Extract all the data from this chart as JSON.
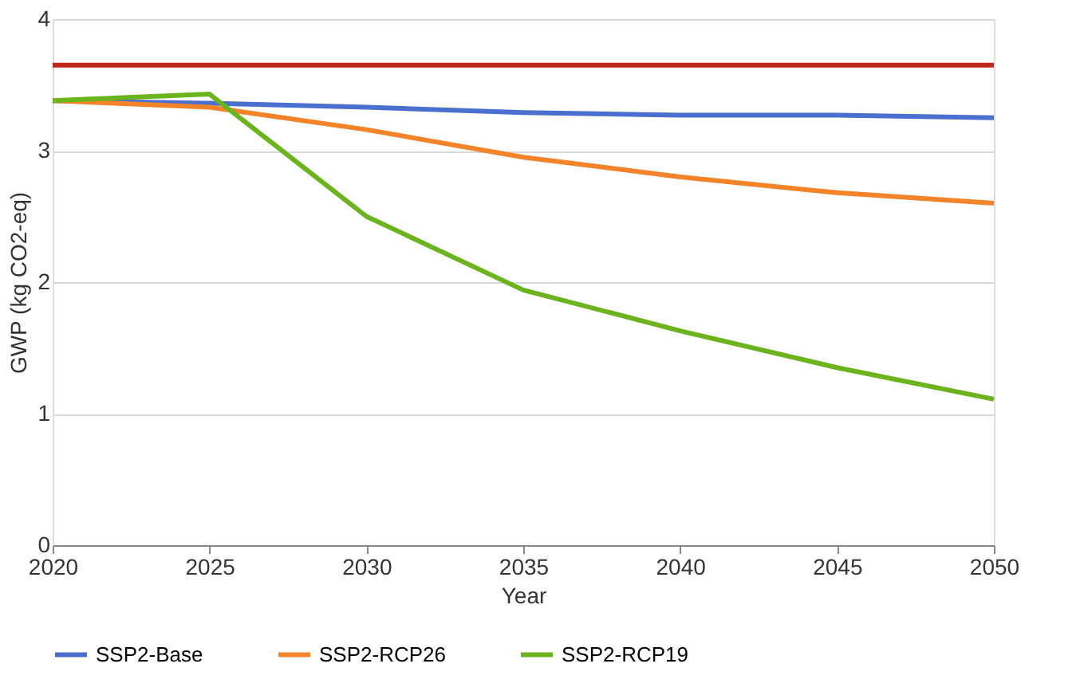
{
  "chart_data": {
    "type": "line",
    "xlabel": "Year",
    "ylabel": "GWP (kg CO2-eq)",
    "x": [
      2020,
      2025,
      2030,
      2035,
      2040,
      2045,
      2050
    ],
    "series": [
      {
        "color": "#c0281c",
        "values": [
          3.65,
          3.65,
          3.65,
          3.65,
          3.65,
          3.65,
          3.65
        ]
      },
      {
        "name": "SSP2-Base",
        "color": "#4a6fcf",
        "values": [
          3.38,
          3.36,
          3.33,
          3.29,
          3.27,
          3.27,
          3.25
        ]
      },
      {
        "name": "SSP2-RCP26",
        "color": "#f5832a",
        "values": [
          3.38,
          3.33,
          3.16,
          2.95,
          2.8,
          2.68,
          2.6
        ]
      },
      {
        "name": "SSP2-RCP19",
        "color": "#6cb41e",
        "values": [
          3.38,
          3.43,
          2.5,
          1.94,
          1.63,
          1.35,
          1.11
        ]
      }
    ],
    "xlim": [
      2020,
      2050
    ],
    "xticks": [
      2020,
      2025,
      2030,
      2035,
      2040,
      2045,
      2050
    ],
    "ylim": [
      0,
      4
    ],
    "yticks": [
      0,
      1,
      2,
      3,
      4
    ],
    "grid": "y",
    "legend": "bottom",
    "marker": "none",
    "line_style": "solid"
  }
}
